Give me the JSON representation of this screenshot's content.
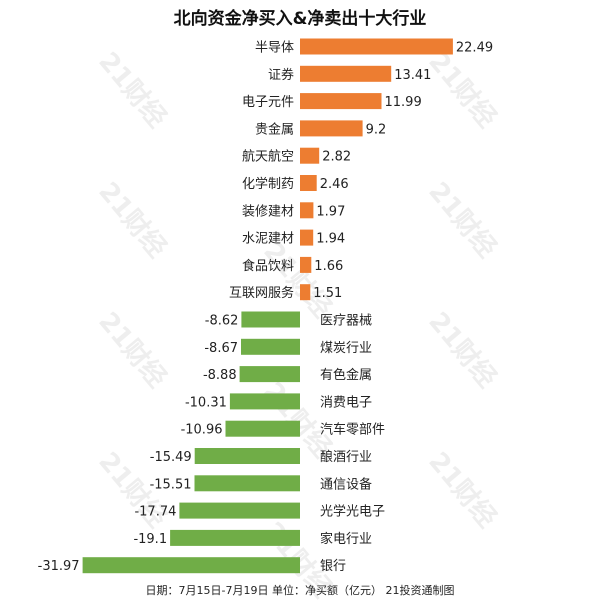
{
  "chart_data": {
    "type": "bar",
    "orientation": "horizontal",
    "title": "北向资金净买入&净卖出十大行业",
    "categories": [
      "半导体",
      "证券",
      "电子元件",
      "贵金属",
      "航天航空",
      "化学制药",
      "装修建材",
      "水泥建材",
      "食品饮料",
      "互联网服务",
      "医疗器械",
      "煤炭行业",
      "有色金属",
      "消费电子",
      "汽车零部件",
      "酿酒行业",
      "通信设备",
      "光学光电子",
      "家电行业",
      "银行"
    ],
    "values": [
      22.49,
      13.41,
      11.99,
      9.2,
      2.82,
      2.46,
      1.97,
      1.94,
      1.66,
      1.51,
      -8.62,
      -8.67,
      -8.88,
      -10.31,
      -10.96,
      -15.49,
      -15.51,
      -17.74,
      -19.1,
      -31.97
    ],
    "value_labels": [
      "22.49",
      "13.41",
      "11.99",
      "9.2",
      "2.82",
      "2.46",
      "1.97",
      "1.94",
      "1.66",
      "1.51",
      "-8.62",
      "-8.67",
      "-8.88",
      "-10.31",
      "-10.96",
      "-15.49",
      "-15.51",
      "-17.74",
      "-19.1",
      "-31.97"
    ],
    "colors": {
      "positive": "#ED7D31",
      "negative": "#70AD47"
    },
    "xlim": [
      -33,
      25
    ],
    "grid": false,
    "legend": "none"
  },
  "footer": "日期：7月15日-7月19日 单位：净买额（亿元） 21投资通制图",
  "watermark_text": "21财经"
}
